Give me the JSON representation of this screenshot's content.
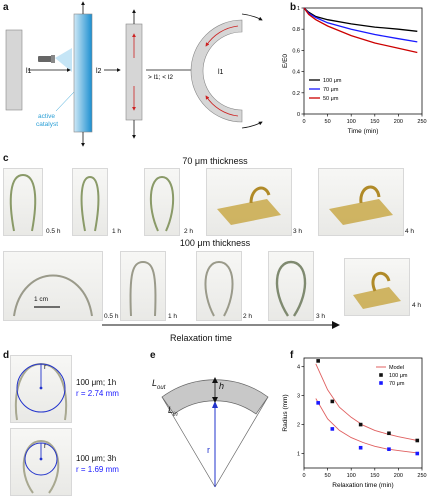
{
  "panels": {
    "a": "a",
    "b": "b",
    "c": "c",
    "d": "d",
    "e": "e",
    "f": "f"
  },
  "panel_a": {
    "l1": "l1",
    "l2": "l2",
    "l1_bent": "l1",
    "catalyst_label_1": "active",
    "catalyst_label_2": "catalyst",
    "condition": "> l1; < l2",
    "colors": {
      "catalyst": "#2a9fd6",
      "arrow": "#cc2222",
      "strip": "#d6d6d6"
    }
  },
  "panel_c": {
    "row1_title": "70 μm thickness",
    "row2_title": "100 μm thickness",
    "row1_times": [
      "0.5 h",
      "1 h",
      "2 h",
      "3 h",
      "4 h"
    ],
    "row2_times": [
      "0.5 h",
      "1 h",
      "2 h",
      "3 h",
      "4 h"
    ],
    "scale_bar": "1 cm",
    "axis_label": "Relaxation time"
  },
  "panel_d": {
    "top_line1": "100 μm; 1h",
    "top_line2": "r = 2.74 mm",
    "bottom_line1": "100 μm; 3h",
    "bottom_line2": "r = 1.69 mm",
    "r_label": "r"
  },
  "panel_e": {
    "lout": "L",
    "lout_sub": "out",
    "lin": "L",
    "lin_sub": "in",
    "h": "h",
    "r": "r"
  },
  "chart_data": [
    {
      "panel": "b",
      "type": "line",
      "xlabel": "Time (min)",
      "ylabel": "E/E0",
      "xlim": [
        0,
        250
      ],
      "ylim": [
        0,
        1.0
      ],
      "xticks": [
        0,
        50,
        100,
        150,
        200,
        250
      ],
      "yticks": [
        0.0,
        0.2,
        0.4,
        0.6,
        0.8,
        1.0
      ],
      "legend_position": "bottom-left",
      "series": [
        {
          "name": "100 μm",
          "color": "#000000",
          "x": [
            0,
            10,
            25,
            50,
            100,
            150,
            200,
            240
          ],
          "y": [
            1.0,
            0.96,
            0.92,
            0.89,
            0.85,
            0.82,
            0.8,
            0.78
          ]
        },
        {
          "name": "70 μm",
          "color": "#1a1aff",
          "x": [
            0,
            10,
            25,
            50,
            100,
            150,
            200,
            240
          ],
          "y": [
            1.0,
            0.95,
            0.91,
            0.86,
            0.8,
            0.75,
            0.71,
            0.68
          ]
        },
        {
          "name": "50 μm",
          "color": "#cc0000",
          "x": [
            0,
            10,
            25,
            50,
            100,
            150,
            200,
            240
          ],
          "y": [
            1.0,
            0.94,
            0.89,
            0.83,
            0.74,
            0.67,
            0.62,
            0.58
          ]
        }
      ]
    },
    {
      "panel": "f",
      "type": "scatter",
      "xlabel": "Relaxation time (min)",
      "ylabel": "Radius (mm)",
      "xlim": [
        0,
        250
      ],
      "ylim": [
        0.5,
        4.3
      ],
      "xticks": [
        0,
        50,
        100,
        150,
        200,
        250
      ],
      "yticks": [
        1,
        2,
        3,
        4
      ],
      "legend_position": "top-right",
      "model": {
        "name": "Model",
        "color": "#e06060",
        "curves": [
          {
            "x": [
              25,
              50,
              75,
              100,
              125,
              150,
              175,
              200,
              225,
              240
            ],
            "y": [
              4.1,
              3.2,
              2.6,
              2.25,
              1.98,
              1.8,
              1.68,
              1.58,
              1.5,
              1.45
            ]
          },
          {
            "x": [
              25,
              50,
              75,
              100,
              125,
              150,
              175,
              200,
              225,
              240
            ],
            "y": [
              2.9,
              2.2,
              1.8,
              1.55,
              1.38,
              1.25,
              1.16,
              1.1,
              1.05,
              1.02
            ]
          }
        ]
      },
      "series": [
        {
          "name": "100 μm",
          "color": "#111111",
          "marker": "square",
          "x": [
            30,
            60,
            120,
            180,
            240
          ],
          "y": [
            4.2,
            2.8,
            2.0,
            1.7,
            1.45
          ]
        },
        {
          "name": "70 μm",
          "color": "#1a1aff",
          "marker": "square",
          "x": [
            30,
            60,
            120,
            180,
            240
          ],
          "y": [
            2.75,
            1.85,
            1.2,
            1.15,
            1.0
          ]
        }
      ]
    }
  ]
}
